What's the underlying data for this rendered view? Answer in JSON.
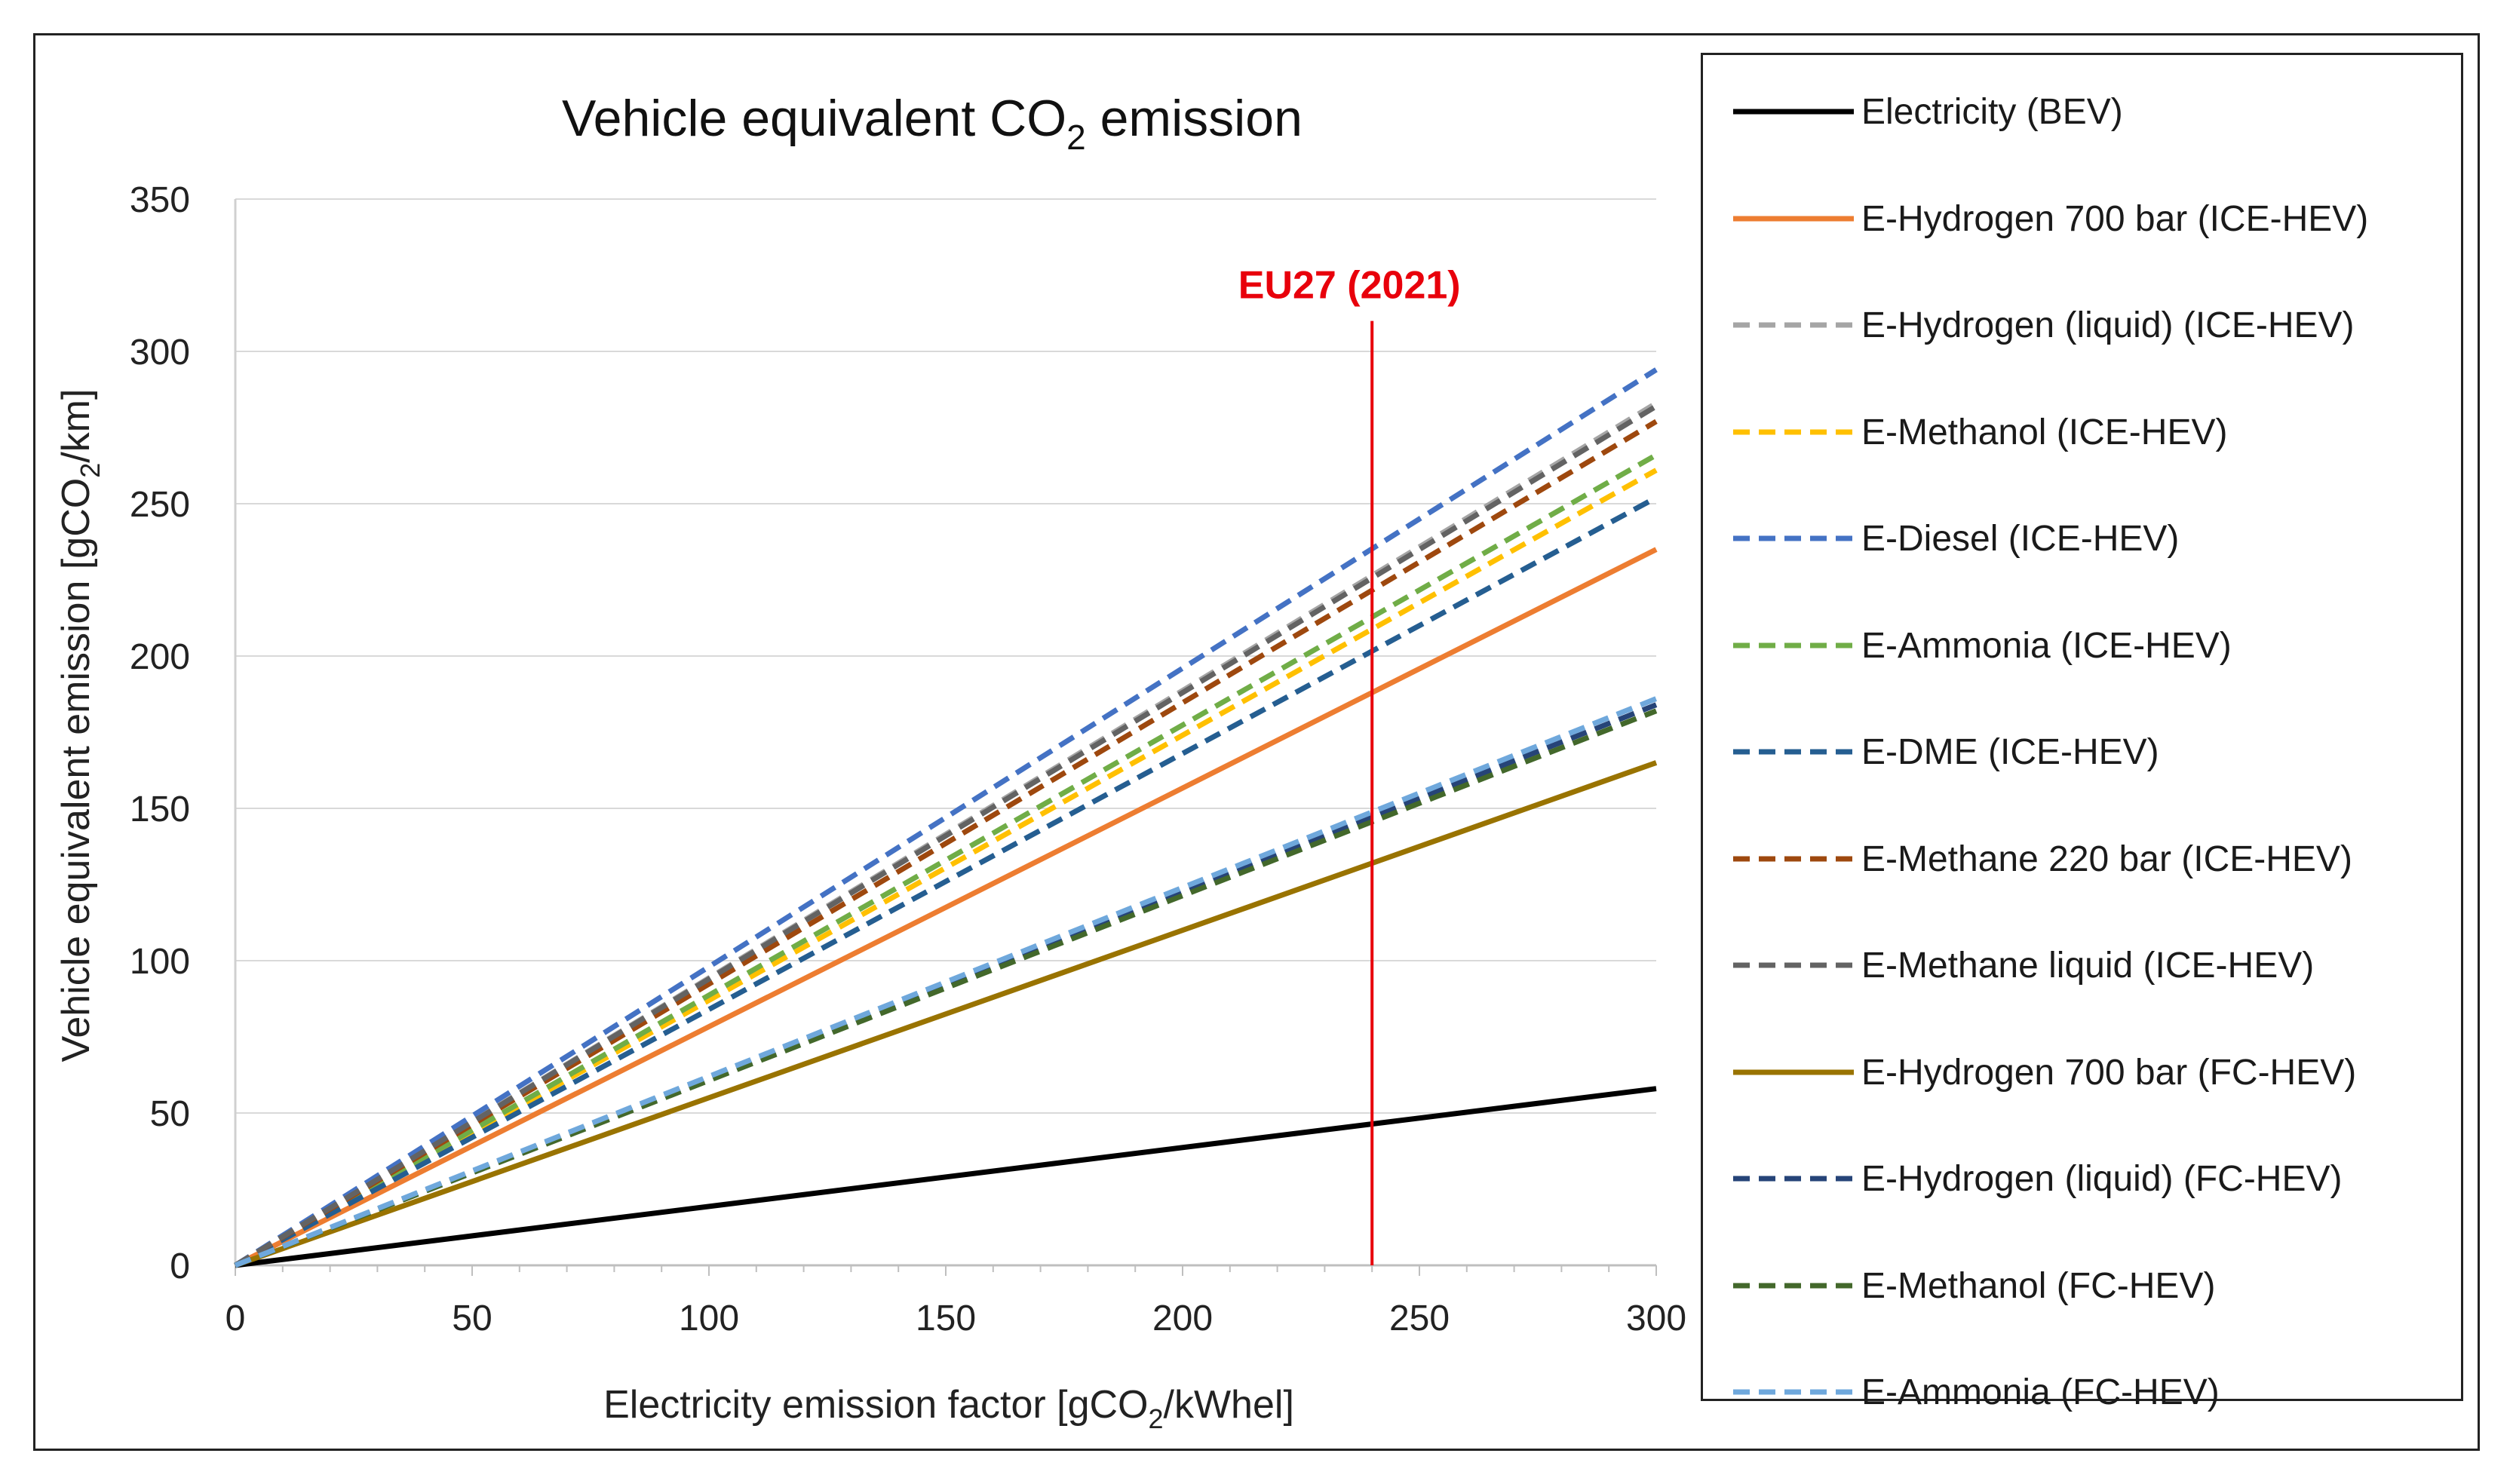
{
  "chart_data": {
    "type": "line",
    "title": "Vehicle equivalent CO",
    "title_sub": "2",
    "title_tail": " emission",
    "xlabel": "Electricity emission factor [gCO",
    "xlabel_sub": "2",
    "xlabel_tail": "/kWhel]",
    "ylabel": "Vehicle equivalent emission [gCO",
    "ylabel_sub": "2",
    "ylabel_tail": "/km]",
    "xlim": [
      0,
      300
    ],
    "ylim": [
      0,
      350
    ],
    "x_ticks": [
      0,
      50,
      100,
      150,
      200,
      250,
      300
    ],
    "y_ticks": [
      0,
      50,
      100,
      150,
      200,
      250,
      300,
      350
    ],
    "grid": "horizontal",
    "legend": "right",
    "x": [
      0,
      300
    ],
    "series": [
      {
        "name": "Electricity (BEV)",
        "values": [
          0,
          58
        ],
        "color": "#000000",
        "dash": "solid"
      },
      {
        "name": "E-Hydrogen 700 bar (ICE-HEV)",
        "values": [
          0,
          235
        ],
        "color": "#ed7d31",
        "dash": "solid"
      },
      {
        "name": "E-Hydrogen (liquid) (ICE-HEV)",
        "values": [
          0,
          283
        ],
        "color": "#a5a5a5",
        "dash": "dashed"
      },
      {
        "name": "E-Methanol (ICE-HEV)",
        "values": [
          0,
          261
        ],
        "color": "#ffc000",
        "dash": "dashed"
      },
      {
        "name": "E-Diesel (ICE-HEV)",
        "values": [
          0,
          294
        ],
        "color": "#4472c4",
        "dash": "dashed"
      },
      {
        "name": "E-Ammonia (ICE-HEV)",
        "values": [
          0,
          266
        ],
        "color": "#70ad47",
        "dash": "dashed"
      },
      {
        "name": "E-DME (ICE-HEV)",
        "values": [
          0,
          252
        ],
        "color": "#255e91",
        "dash": "dashed"
      },
      {
        "name": "E-Methane 220 bar (ICE-HEV)",
        "values": [
          0,
          277
        ],
        "color": "#9e480e",
        "dash": "dashed"
      },
      {
        "name": "E-Methane liquid (ICE-HEV)",
        "values": [
          0,
          282
        ],
        "color": "#636363",
        "dash": "dashed"
      },
      {
        "name": "E-Hydrogen 700 bar (FC-HEV)",
        "values": [
          0,
          165
        ],
        "color": "#997300",
        "dash": "solid"
      },
      {
        "name": "E-Hydrogen (liquid) (FC-HEV)",
        "values": [
          0,
          184
        ],
        "color": "#264478",
        "dash": "dashed"
      },
      {
        "name": "E-Methanol (FC-HEV)",
        "values": [
          0,
          182
        ],
        "color": "#43682b",
        "dash": "dashed"
      },
      {
        "name": "E-Ammonia (FC-HEV)",
        "values": [
          0,
          186
        ],
        "color": "#6fa8dc",
        "dash": "dashed"
      }
    ],
    "annotations": [
      {
        "label": "EU27 (2021)",
        "x": 240,
        "y_top": 310,
        "color": "#e8000b"
      }
    ]
  }
}
